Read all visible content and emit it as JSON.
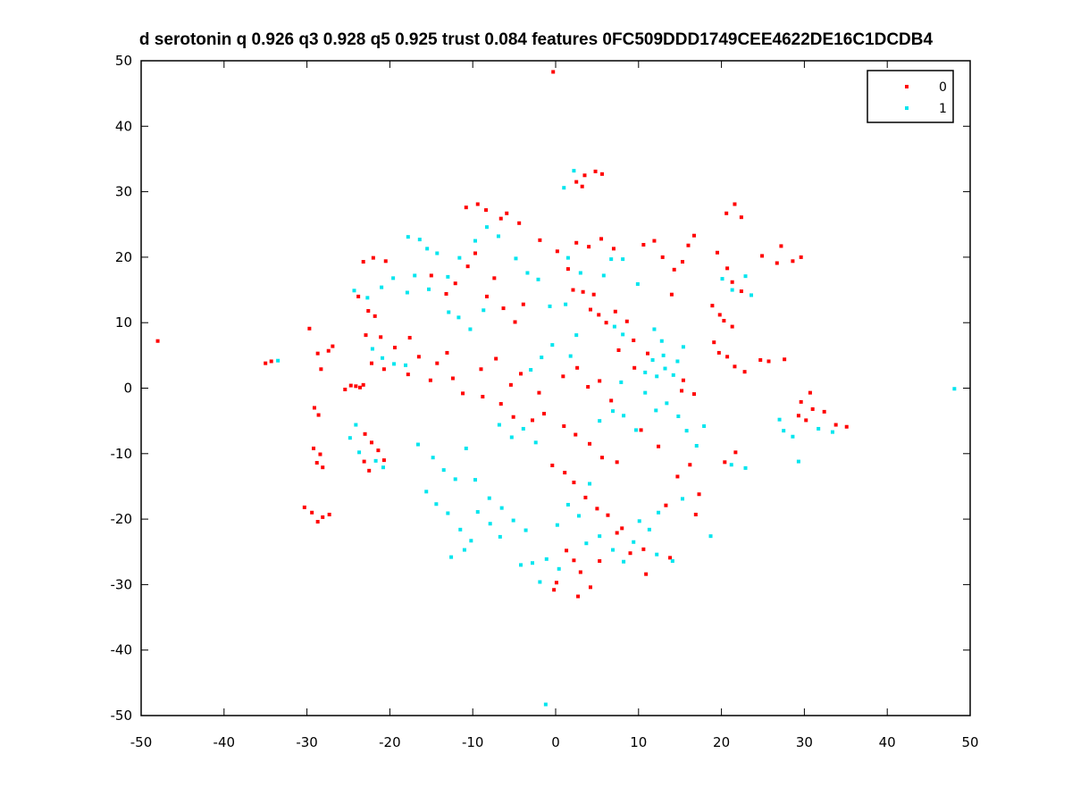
{
  "chart_data": {
    "type": "scatter",
    "title": "d serotonin q 0.926 q3 0.928 q5 0.925 trust 0.084 features 0FC509DDD1749CEE4622DE16C1DCDB4",
    "xlabel": "",
    "ylabel": "",
    "xlim": [
      -50,
      50
    ],
    "ylim": [
      -50,
      50
    ],
    "xticks": [
      -50,
      -40,
      -30,
      -20,
      -10,
      0,
      10,
      20,
      30,
      40,
      50
    ],
    "yticks": [
      -50,
      -40,
      -30,
      -20,
      -10,
      0,
      10,
      20,
      30,
      40,
      50
    ],
    "grid": false,
    "legend_position": "top-right",
    "series": [
      {
        "name": "0",
        "color": "#ff0000",
        "points": [
          [
            -0.3,
            48.3
          ],
          [
            2.5,
            31.5
          ],
          [
            3.5,
            32.5
          ],
          [
            4.8,
            33.1
          ],
          [
            3.2,
            30.8
          ],
          [
            5.6,
            32.7
          ],
          [
            -48,
            7.2
          ],
          [
            -35,
            3.8
          ],
          [
            -34.3,
            4.1
          ],
          [
            -29.7,
            9.1
          ],
          [
            -28.7,
            5.3
          ],
          [
            -28.3,
            2.9
          ],
          [
            -27.4,
            5.7
          ],
          [
            -26.9,
            6.4
          ],
          [
            -25.4,
            -0.2
          ],
          [
            -24.7,
            0.4
          ],
          [
            -24.1,
            0.3
          ],
          [
            -23.6,
            0.1
          ],
          [
            -23.2,
            0.5
          ],
          [
            -29.1,
            -3.0
          ],
          [
            -28.6,
            -4.1
          ],
          [
            -29.2,
            -9.2
          ],
          [
            -28.4,
            -10.1
          ],
          [
            -28.8,
            -11.4
          ],
          [
            -28.1,
            -12.1
          ],
          [
            -30.3,
            -18.2
          ],
          [
            -29.4,
            -19.0
          ],
          [
            -28.1,
            -19.7
          ],
          [
            -27.3,
            -19.3
          ],
          [
            -28.7,
            -20.4
          ],
          [
            -23.0,
            -7.0
          ],
          [
            -22.2,
            -8.3
          ],
          [
            -21.4,
            -9.5
          ],
          [
            -23.1,
            -11.2
          ],
          [
            -22.5,
            -12.6
          ],
          [
            -20.7,
            -11.0
          ],
          [
            -23.2,
            19.3
          ],
          [
            -22.0,
            19.9
          ],
          [
            -20.5,
            19.4
          ],
          [
            -23.8,
            14.0
          ],
          [
            -22.6,
            11.8
          ],
          [
            -21.8,
            11.0
          ],
          [
            -22.9,
            8.1
          ],
          [
            -21.1,
            7.8
          ],
          [
            -22.2,
            3.8
          ],
          [
            -20.7,
            2.9
          ],
          [
            -19.4,
            6.2
          ],
          [
            -17.6,
            7.7
          ],
          [
            -16.5,
            4.8
          ],
          [
            -17.8,
            2.1
          ],
          [
            -15.1,
            1.2
          ],
          [
            -14.3,
            3.8
          ],
          [
            -13.1,
            5.4
          ],
          [
            -12.4,
            1.5
          ],
          [
            -11.2,
            -0.8
          ],
          [
            -15.0,
            17.2
          ],
          [
            -13.2,
            14.4
          ],
          [
            -12.1,
            16.0
          ],
          [
            -10.6,
            18.6
          ],
          [
            -9.7,
            20.6
          ],
          [
            -8.3,
            14.0
          ],
          [
            -7.4,
            16.8
          ],
          [
            -6.3,
            12.2
          ],
          [
            -4.9,
            10.1
          ],
          [
            -3.9,
            12.8
          ],
          [
            -10.8,
            27.6
          ],
          [
            -9.4,
            28.1
          ],
          [
            -8.4,
            27.2
          ],
          [
            -6.6,
            25.9
          ],
          [
            -5.9,
            26.7
          ],
          [
            -4.4,
            25.2
          ],
          [
            -1.9,
            22.6
          ],
          [
            0.2,
            20.9
          ],
          [
            1.5,
            18.2
          ],
          [
            2.1,
            15.0
          ],
          [
            3.3,
            14.7
          ],
          [
            4.6,
            14.3
          ],
          [
            2.5,
            22.2
          ],
          [
            4.0,
            21.6
          ],
          [
            5.5,
            22.8
          ],
          [
            7.0,
            21.3
          ],
          [
            4.2,
            12.0
          ],
          [
            5.2,
            11.2
          ],
          [
            6.1,
            10.0
          ],
          [
            7.2,
            11.7
          ],
          [
            8.6,
            10.2
          ],
          [
            7.6,
            5.8
          ],
          [
            9.4,
            7.3
          ],
          [
            11.1,
            5.3
          ],
          [
            9.5,
            3.1
          ],
          [
            10.6,
            21.9
          ],
          [
            11.9,
            22.5
          ],
          [
            12.9,
            20.0
          ],
          [
            14.3,
            18.1
          ],
          [
            15.3,
            19.3
          ],
          [
            16.0,
            21.8
          ],
          [
            16.7,
            23.3
          ],
          [
            14.0,
            14.3
          ],
          [
            20.6,
            26.7
          ],
          [
            21.6,
            28.1
          ],
          [
            22.4,
            26.1
          ],
          [
            24.9,
            20.2
          ],
          [
            26.7,
            19.1
          ],
          [
            28.6,
            19.4
          ],
          [
            29.6,
            20.0
          ],
          [
            27.2,
            21.7
          ],
          [
            19.5,
            20.7
          ],
          [
            20.7,
            18.3
          ],
          [
            21.3,
            16.2
          ],
          [
            22.4,
            14.8
          ],
          [
            18.9,
            12.6
          ],
          [
            19.8,
            11.2
          ],
          [
            20.3,
            10.3
          ],
          [
            21.3,
            9.4
          ],
          [
            19.1,
            7.0
          ],
          [
            19.7,
            5.4
          ],
          [
            20.7,
            4.8
          ],
          [
            21.6,
            3.3
          ],
          [
            22.8,
            2.5
          ],
          [
            27.6,
            4.4
          ],
          [
            24.7,
            4.3
          ],
          [
            25.7,
            4.1
          ],
          [
            29.3,
            -4.2
          ],
          [
            30.2,
            -4.9
          ],
          [
            31.0,
            -3.2
          ],
          [
            32.4,
            -3.6
          ],
          [
            33.8,
            -5.6
          ],
          [
            35.1,
            -5.9
          ],
          [
            29.6,
            -2.1
          ],
          [
            30.7,
            -0.7
          ],
          [
            -8.8,
            -1.3
          ],
          [
            -6.6,
            -2.4
          ],
          [
            -5.1,
            -4.4
          ],
          [
            -2.8,
            -4.9
          ],
          [
            -1.4,
            -3.9
          ],
          [
            -9.0,
            2.9
          ],
          [
            -7.2,
            4.5
          ],
          [
            -5.4,
            0.5
          ],
          [
            -4.2,
            2.2
          ],
          [
            -2.0,
            -0.7
          ],
          [
            0.9,
            1.8
          ],
          [
            2.6,
            3.1
          ],
          [
            3.9,
            0.2
          ],
          [
            5.3,
            1.1
          ],
          [
            6.7,
            -1.9
          ],
          [
            1.0,
            -5.8
          ],
          [
            2.4,
            -7.1
          ],
          [
            4.1,
            -8.5
          ],
          [
            5.6,
            -10.6
          ],
          [
            7.4,
            -11.3
          ],
          [
            -0.4,
            -11.8
          ],
          [
            1.1,
            -12.9
          ],
          [
            2.2,
            -14.4
          ],
          [
            3.6,
            -16.7
          ],
          [
            5.0,
            -18.4
          ],
          [
            6.3,
            -19.4
          ],
          [
            7.4,
            -22.1
          ],
          [
            8.0,
            -21.4
          ],
          [
            9.0,
            -25.2
          ],
          [
            10.6,
            -24.6
          ],
          [
            1.3,
            -24.8
          ],
          [
            2.2,
            -26.3
          ],
          [
            3.0,
            -28.1
          ],
          [
            4.2,
            -30.4
          ],
          [
            2.7,
            -31.8
          ],
          [
            0.1,
            -29.7
          ],
          [
            -0.2,
            -30.8
          ],
          [
            5.3,
            -26.4
          ],
          [
            10.9,
            -28.4
          ],
          [
            13.3,
            -17.9
          ],
          [
            14.7,
            -13.5
          ],
          [
            16.2,
            -11.7
          ],
          [
            17.3,
            -16.2
          ],
          [
            12.4,
            -8.9
          ],
          [
            10.3,
            -6.4
          ],
          [
            15.2,
            -0.4
          ],
          [
            16.7,
            -0.9
          ],
          [
            15.4,
            1.2
          ],
          [
            21.7,
            -9.8
          ],
          [
            20.4,
            -11.3
          ],
          [
            13.8,
            -25.9
          ],
          [
            16.9,
            -19.3
          ]
        ]
      },
      {
        "name": "1",
        "color": "#00e5ee",
        "points": [
          [
            -1.2,
            -48.3
          ],
          [
            1.0,
            30.6
          ],
          [
            2.2,
            33.2
          ],
          [
            -33.5,
            4.2
          ],
          [
            -24.1,
            -5.6
          ],
          [
            -24.8,
            -7.6
          ],
          [
            -23.7,
            -9.8
          ],
          [
            -21.7,
            -11.1
          ],
          [
            -20.8,
            -12.1
          ],
          [
            -24.3,
            14.9
          ],
          [
            -22.7,
            13.8
          ],
          [
            -21.0,
            15.4
          ],
          [
            -19.6,
            16.8
          ],
          [
            -17.9,
            14.6
          ],
          [
            -17.0,
            17.2
          ],
          [
            -15.3,
            15.1
          ],
          [
            -13.0,
            17.0
          ],
          [
            -11.6,
            19.9
          ],
          [
            -9.7,
            22.5
          ],
          [
            -8.3,
            24.6
          ],
          [
            -6.9,
            23.2
          ],
          [
            -17.8,
            23.1
          ],
          [
            -16.4,
            22.7
          ],
          [
            -15.5,
            21.3
          ],
          [
            -14.3,
            20.6
          ],
          [
            -22.1,
            6.0
          ],
          [
            -20.9,
            4.6
          ],
          [
            -19.5,
            3.7
          ],
          [
            -18.1,
            3.5
          ],
          [
            -4.8,
            19.8
          ],
          [
            -3.4,
            17.6
          ],
          [
            -2.1,
            16.6
          ],
          [
            -0.7,
            12.5
          ],
          [
            1.2,
            12.8
          ],
          [
            1.5,
            19.9
          ],
          [
            3.0,
            17.6
          ],
          [
            5.8,
            17.2
          ],
          [
            6.7,
            19.7
          ],
          [
            8.1,
            19.7
          ],
          [
            7.1,
            9.4
          ],
          [
            8.1,
            8.2
          ],
          [
            9.9,
            15.9
          ],
          [
            11.9,
            9.0
          ],
          [
            12.8,
            7.2
          ],
          [
            13.0,
            5.0
          ],
          [
            14.7,
            4.1
          ],
          [
            15.4,
            6.3
          ],
          [
            13.2,
            3.0
          ],
          [
            12.2,
            1.8
          ],
          [
            11.7,
            4.3
          ],
          [
            14.2,
            2.0
          ],
          [
            20.1,
            16.7
          ],
          [
            21.3,
            15.0
          ],
          [
            22.9,
            17.1
          ],
          [
            23.6,
            14.2
          ],
          [
            48.1,
            -0.1
          ],
          [
            27.0,
            -4.8
          ],
          [
            27.5,
            -6.5
          ],
          [
            28.6,
            -7.4
          ],
          [
            29.3,
            -11.2
          ],
          [
            31.7,
            -6.2
          ],
          [
            33.4,
            -6.7
          ],
          [
            13.4,
            -2.3
          ],
          [
            14.8,
            -4.3
          ],
          [
            15.8,
            -6.5
          ],
          [
            17.0,
            -8.8
          ],
          [
            17.9,
            -5.8
          ],
          [
            10.8,
            -0.7
          ],
          [
            12.1,
            -3.4
          ],
          [
            -16.6,
            -8.6
          ],
          [
            -14.8,
            -10.6
          ],
          [
            -13.5,
            -12.5
          ],
          [
            -12.1,
            -13.9
          ],
          [
            -10.8,
            -9.2
          ],
          [
            -9.7,
            -14.0
          ],
          [
            -8.0,
            -16.8
          ],
          [
            -6.5,
            -18.3
          ],
          [
            -5.1,
            -20.2
          ],
          [
            -3.6,
            -21.7
          ],
          [
            -15.6,
            -15.8
          ],
          [
            -14.4,
            -17.7
          ],
          [
            -13.0,
            -19.1
          ],
          [
            -11.5,
            -21.6
          ],
          [
            -10.2,
            -23.3
          ],
          [
            -12.6,
            -25.8
          ],
          [
            -11.0,
            -24.7
          ],
          [
            -9.4,
            -18.9
          ],
          [
            -7.9,
            -20.7
          ],
          [
            -6.7,
            -22.7
          ],
          [
            -4.2,
            -27.0
          ],
          [
            -2.8,
            -26.7
          ],
          [
            -1.1,
            -26.1
          ],
          [
            0.4,
            -27.6
          ],
          [
            -1.9,
            -29.6
          ],
          [
            0.2,
            -20.9
          ],
          [
            1.5,
            -17.8
          ],
          [
            2.8,
            -19.5
          ],
          [
            4.1,
            -14.6
          ],
          [
            3.7,
            -23.7
          ],
          [
            5.3,
            -22.6
          ],
          [
            6.9,
            -24.7
          ],
          [
            8.2,
            -26.5
          ],
          [
            9.4,
            -23.5
          ],
          [
            10.1,
            -20.3
          ],
          [
            11.3,
            -21.6
          ],
          [
            12.4,
            -19.0
          ],
          [
            12.2,
            -25.4
          ],
          [
            14.1,
            -26.4
          ],
          [
            18.7,
            -22.6
          ],
          [
            15.3,
            -16.9
          ],
          [
            -3.0,
            2.8
          ],
          [
            -1.7,
            4.7
          ],
          [
            -0.4,
            6.6
          ],
          [
            1.8,
            4.9
          ],
          [
            2.5,
            8.1
          ],
          [
            -6.8,
            -5.6
          ],
          [
            -5.3,
            -7.5
          ],
          [
            -3.9,
            -6.2
          ],
          [
            -2.4,
            -8.3
          ],
          [
            5.3,
            -5.0
          ],
          [
            6.9,
            -3.5
          ],
          [
            8.2,
            -4.2
          ],
          [
            9.7,
            -6.4
          ],
          [
            -12.9,
            11.6
          ],
          [
            -11.7,
            10.8
          ],
          [
            -10.3,
            9.0
          ],
          [
            -8.7,
            11.9
          ],
          [
            21.2,
            -11.7
          ],
          [
            22.9,
            -12.2
          ],
          [
            7.9,
            0.9
          ],
          [
            10.8,
            2.4
          ]
        ]
      }
    ]
  }
}
